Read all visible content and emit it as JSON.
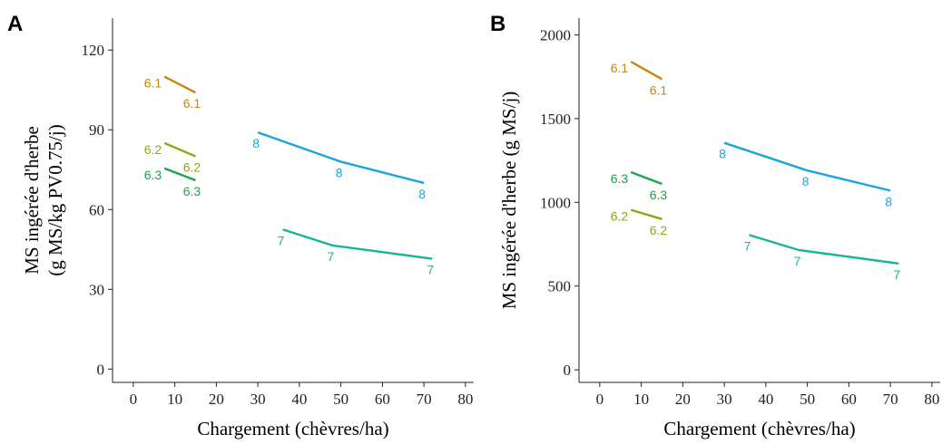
{
  "colors": {
    "6.1": "#c8860a",
    "6.2": "#8aab0e",
    "6.3": "#18a64a",
    "7": "#16b59a",
    "8": "#1aa6dd",
    "axis": "#222222"
  },
  "chart_data": [
    {
      "type": "line",
      "panel": "A",
      "xlabel": "Chargement (chèvres/ha)",
      "ylabel": [
        "MS ingérée d'herbe",
        "(g MS/kg PV0.75/j)"
      ],
      "xlim": [
        -5,
        82
      ],
      "ylim": [
        -5,
        132
      ],
      "xticks": [
        0,
        10,
        20,
        30,
        40,
        50,
        60,
        70,
        80
      ],
      "yticks": [
        0,
        30,
        60,
        90,
        120
      ],
      "grid": false,
      "legend": "none",
      "series": [
        {
          "name": "6.1",
          "color_key": "6.1",
          "x": [
            7.5,
            15
          ],
          "y": [
            110,
            104
          ],
          "label_left": "6.1",
          "label_right": "6.1"
        },
        {
          "name": "6.2",
          "color_key": "6.2",
          "x": [
            7.5,
            15
          ],
          "y": [
            85,
            80
          ],
          "label_left": "6.2",
          "label_right": "6.2"
        },
        {
          "name": "6.3",
          "color_key": "6.3",
          "x": [
            7.5,
            15
          ],
          "y": [
            75.5,
            71
          ],
          "label_left": "6.3",
          "label_right": "6.3"
        },
        {
          "name": "8",
          "color_key": "8",
          "x": [
            30,
            50,
            70
          ],
          "y": [
            89,
            78,
            70
          ],
          "point_labels": [
            "8",
            "8",
            "8"
          ]
        },
        {
          "name": "7",
          "color_key": "7",
          "x": [
            36,
            48,
            72
          ],
          "y": [
            52.5,
            46.5,
            41.5
          ],
          "point_labels": [
            "7",
            "7",
            "7"
          ]
        }
      ]
    },
    {
      "type": "line",
      "panel": "B",
      "xlabel": "Chargement (chèvres/ha)",
      "ylabel": [
        "MS ingérée d'herbe (g MS/j)"
      ],
      "xlim": [
        -5,
        82
      ],
      "ylim": [
        -75,
        2100
      ],
      "xticks": [
        0,
        10,
        20,
        30,
        40,
        50,
        60,
        70,
        80
      ],
      "yticks": [
        0,
        500,
        1000,
        1500,
        2000
      ],
      "grid": false,
      "legend": "none",
      "series": [
        {
          "name": "6.1",
          "color_key": "6.1",
          "x": [
            7.5,
            15
          ],
          "y": [
            1840,
            1735
          ],
          "label_left": "6.1",
          "label_right": "6.1"
        },
        {
          "name": "6.3",
          "color_key": "6.3",
          "x": [
            7.5,
            15
          ],
          "y": [
            1180,
            1110
          ],
          "label_left": "6.3",
          "label_right": "6.3"
        },
        {
          "name": "6.2",
          "color_key": "6.2",
          "x": [
            7.5,
            15
          ],
          "y": [
            955,
            900
          ],
          "label_left": "6.2",
          "label_right": "6.2"
        },
        {
          "name": "8",
          "color_key": "8",
          "x": [
            30,
            50,
            70
          ],
          "y": [
            1355,
            1190,
            1070
          ],
          "point_labels": [
            "8",
            "8",
            "8"
          ]
        },
        {
          "name": "7",
          "color_key": "7",
          "x": [
            36,
            48,
            72
          ],
          "y": [
            805,
            715,
            635
          ],
          "point_labels": [
            "7",
            "7",
            "7"
          ]
        }
      ]
    }
  ]
}
